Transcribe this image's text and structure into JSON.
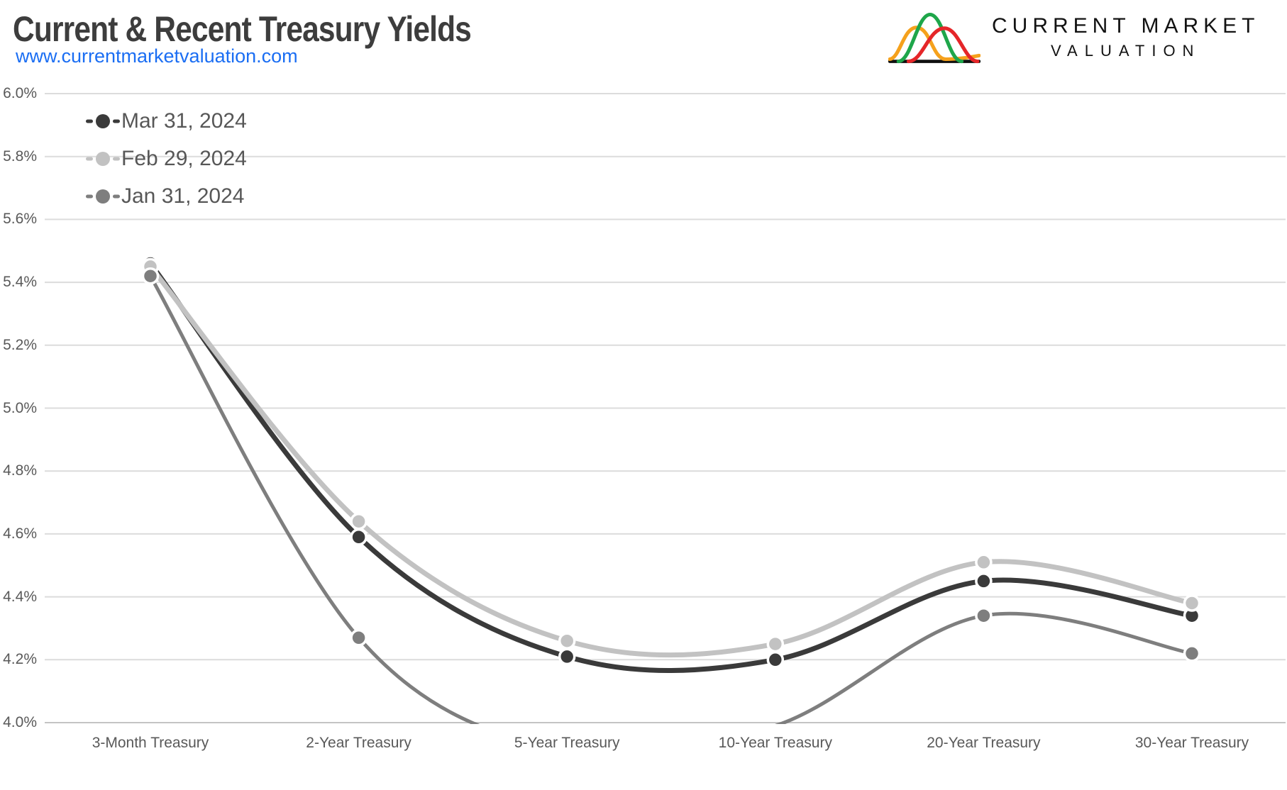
{
  "header": {
    "title": "Current & Recent Treasury Yields",
    "website": "www.currentmarketvaluation.com",
    "logo": {
      "line1": "CURRENT MARKET",
      "line2": "VALUATION",
      "curve_colors": {
        "orange": "#F5A11C",
        "green": "#1EA64A",
        "red": "#E52629",
        "baseline": "#0F0F0F"
      }
    }
  },
  "chart_data": {
    "type": "line",
    "title": "Current & Recent Treasury Yields",
    "line_style": "smooth",
    "categories": [
      "3-Month Treasury",
      "2-Year Treasury",
      "5-Year Treasury",
      "10-Year Treasury",
      "20-Year Treasury",
      "30-Year Treasury"
    ],
    "series": [
      {
        "name": "Mar 31, 2024",
        "color": "#3a3a3a",
        "line_width": 7,
        "values": [
          5.46,
          4.59,
          4.21,
          4.2,
          4.45,
          4.34
        ]
      },
      {
        "name": "Feb 29, 2024",
        "color": "#c2c2c2",
        "line_width": 7,
        "values": [
          5.45,
          4.64,
          4.26,
          4.25,
          4.51,
          4.38
        ]
      },
      {
        "name": "Jan 31, 2024",
        "color": "#7e7e7e",
        "line_width": 5,
        "values": [
          5.42,
          4.27,
          3.91,
          3.99,
          4.34,
          4.22
        ]
      }
    ],
    "ylim": [
      4.0,
      6.0
    ],
    "ytick_labels": [
      "6.0%",
      "5.8%",
      "5.6%",
      "5.4%",
      "5.2%",
      "5.0%",
      "4.8%",
      "4.6%",
      "4.4%",
      "4.2%",
      "4.0%"
    ],
    "xlabel": "",
    "ylabel": "",
    "unit": "percent",
    "grid": "horizontal",
    "legend_position": "top-left",
    "colors": {
      "gridline": "#dcdcdc",
      "axis_line": "#c4c4c4",
      "axis_text": "#595959",
      "marker_ring": "#ffffff"
    }
  }
}
